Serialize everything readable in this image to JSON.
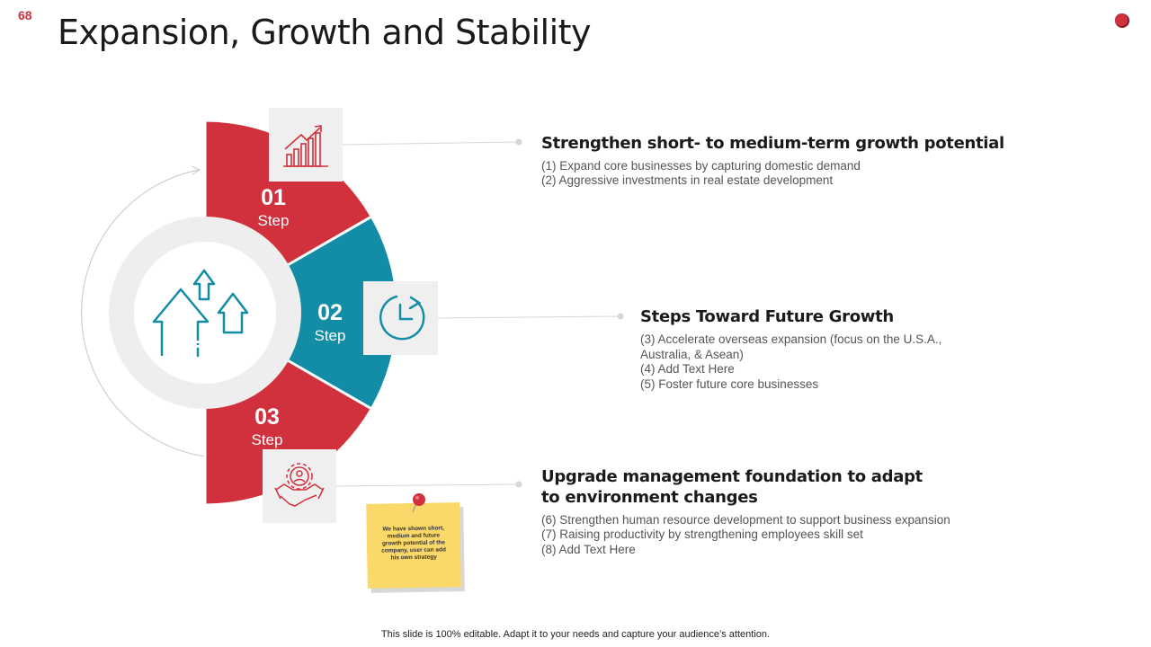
{
  "slide": {
    "number": "68",
    "title": "Expansion, Growth and Stability",
    "footer": "This slide is 100% editable. Adapt it to your needs and capture your audience’s attention."
  },
  "colors": {
    "red": "#d0313d",
    "teal": "#138ca6",
    "gray_box": "#efefef",
    "note": "#fbd86a"
  },
  "center": {
    "icon": "growth-arrows-icon"
  },
  "steps": [
    {
      "number": "01",
      "label": "Step",
      "icon": "bar-chart-growth-icon",
      "heading": "Strengthen short- to medium-term growth potential",
      "items": [
        "(1)  Expand core businesses by capturing domestic demand",
        "(2)  Aggressive investments in real estate development"
      ]
    },
    {
      "number": "02",
      "label": "Step",
      "icon": "clock-refresh-icon",
      "heading": "Steps Toward Future Growth",
      "items": [
        "(3) Accelerate overseas expansion (focus on the U.S.A., Australia, & Asean)",
        "(4) Add Text Here",
        "(5) Foster future core businesses"
      ]
    },
    {
      "number": "03",
      "label": "Step",
      "icon": "handshake-gear-icon",
      "heading": "Upgrade management foundation to adapt to environment changes",
      "items": [
        "(6) Strengthen human resource development to support business expansion",
        "(7) Raising productivity by strengthening employees skill set",
        "(8) Add Text Here"
      ]
    }
  ],
  "sticky_note": {
    "text": "We have shown short, medium and future growth potential of the company, user can add his own strategy"
  }
}
